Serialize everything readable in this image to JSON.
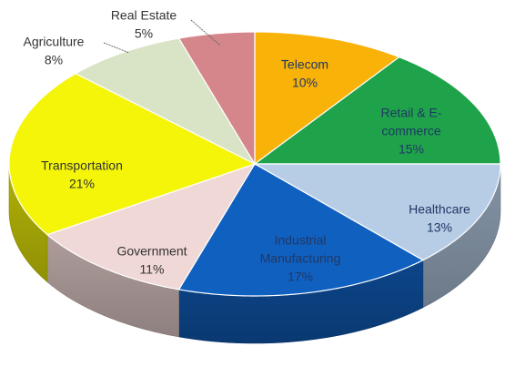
{
  "chart_data": {
    "type": "pie",
    "style": "3d",
    "title": "",
    "start_angle_deg": 0,
    "direction": "clockwise",
    "slices": [
      {
        "name": "Telecom",
        "label_lines": [
          "Telecom",
          "10%"
        ],
        "value": 10,
        "color": "#F9B208",
        "label_color": "#1F3864"
      },
      {
        "name": "Retail & E-commerce",
        "label_lines": [
          "Retail & E-",
          "commerce",
          "15%"
        ],
        "value": 15,
        "color": "#1FA34A",
        "label_color": "#1F3864"
      },
      {
        "name": "Healthcare",
        "label_lines": [
          "Healthcare",
          "13%"
        ],
        "value": 13,
        "color": "#B7CDE6",
        "label_color": "#1F3864"
      },
      {
        "name": "Industrial Manufacturing",
        "label_lines": [
          "Industrial",
          "Manufacturing",
          "17%"
        ],
        "value": 17,
        "color": "#1060C0",
        "label_color": "#1F3864"
      },
      {
        "name": "Government",
        "label_lines": [
          "Government",
          "11%"
        ],
        "value": 11,
        "color": "#F0D8D6",
        "label_color": "#333333"
      },
      {
        "name": "Transportation",
        "label_lines": [
          "Transportation",
          "21%"
        ],
        "value": 21,
        "color": "#F5F50A",
        "label_color": "#333333"
      },
      {
        "name": "Agriculture",
        "label_lines": [
          "Agriculture",
          "8%"
        ],
        "value": 8,
        "color": "#D9E3C5",
        "label_color": "#333333"
      },
      {
        "name": "Real Estate",
        "label_lines": [
          "Real Estate",
          "5%"
        ],
        "value": 5,
        "color": "#D4868B",
        "label_color": "#333333"
      }
    ]
  }
}
